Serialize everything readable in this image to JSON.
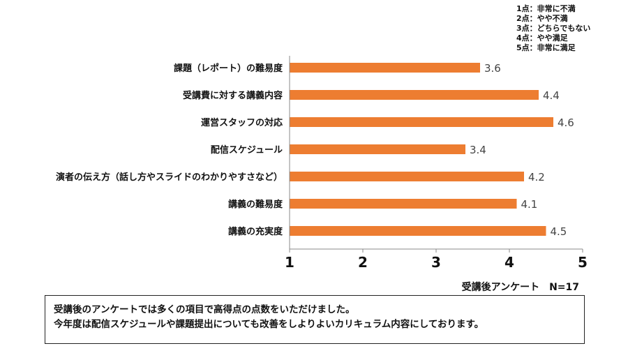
{
  "legend": [
    "1点：非常に不満",
    "2点：やや不満",
    "3点：どちらでもない",
    "4点：やや満足",
    "5点：非常に満足"
  ],
  "chart_data": {
    "type": "bar",
    "orientation": "horizontal",
    "categories": [
      "課題（レポート）の難易度",
      "受講費に対する講義内容",
      "運営スタッフの対応",
      "配信スケジュール",
      "演者の伝え方（話し方やスライドのわかりやすさなど）",
      "講義の難易度",
      "講義の充実度"
    ],
    "values": [
      3.6,
      4.4,
      4.6,
      3.4,
      4.2,
      4.1,
      4.5
    ],
    "value_labels": [
      "3.6",
      "4.4",
      "4.6",
      "3.4",
      "4.2",
      "4.1",
      "4.5"
    ],
    "xlim": [
      1,
      5
    ],
    "ticks": [
      "1",
      "2",
      "3",
      "4",
      "5"
    ],
    "bar_color": "#ED7D31",
    "grid": false,
    "note": "受講後アンケート　N=17"
  },
  "comment": {
    "line1": "受講後のアンケートでは多くの項目で高得点の点数をいただけました。",
    "line2": "今年度は配信スケジュールや課題提出についても改善をしよりよいカリキュラム内容にしております。"
  }
}
